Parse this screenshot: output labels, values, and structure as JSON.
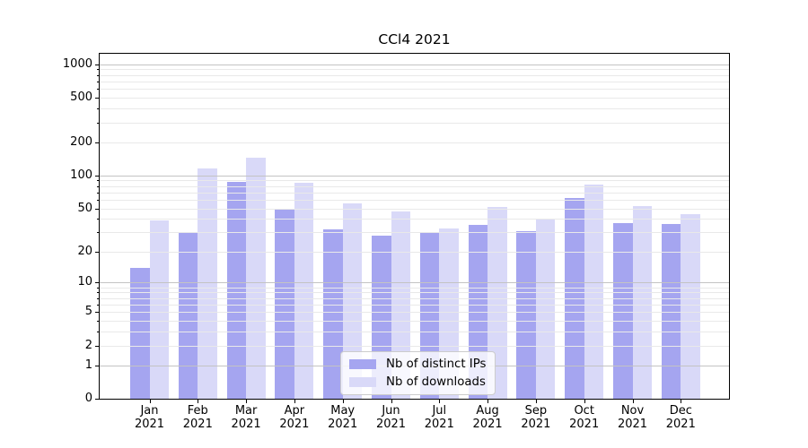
{
  "title": "CCl4 2021",
  "chart_data": {
    "type": "bar",
    "title": "CCl4 2021",
    "categories": [
      "Jan",
      "Feb",
      "Mar",
      "Apr",
      "May",
      "Jun",
      "Jul",
      "Aug",
      "Sep",
      "Oct",
      "Nov",
      "Dec"
    ],
    "year": "2021",
    "series": [
      {
        "name": "Nb of distinct IPs",
        "color": "#a5a5f0",
        "values": [
          14,
          30,
          87,
          50,
          32,
          28,
          30,
          35,
          31,
          62,
          37,
          36
        ]
      },
      {
        "name": "Nb of downloads",
        "color": "#d9d9f8",
        "values": [
          39,
          115,
          145,
          86,
          56,
          47,
          33,
          52,
          40,
          82,
          53,
          44
        ]
      }
    ],
    "y_axis": {
      "scale": "log1p",
      "tick_values": [
        1000,
        500,
        200,
        100,
        50,
        20,
        10,
        5,
        2,
        1,
        0
      ],
      "tick_labels": [
        "1000",
        "500",
        "200",
        "100",
        "50",
        "20",
        "10",
        "5",
        "2",
        "1",
        "0"
      ],
      "axis_min": 0,
      "axis_max": 1244
    },
    "legend": {
      "position": "lower center",
      "entries": [
        "Nb of distinct IPs",
        "Nb of downloads"
      ]
    },
    "grid": {
      "major_tick_values": [
        1,
        10,
        100,
        1000
      ],
      "major_color": "#c3c3c3",
      "minor_color": "#e9e9e9"
    }
  }
}
